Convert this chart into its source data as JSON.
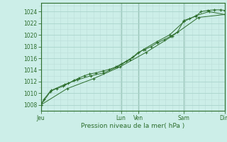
{
  "xlabel": "Pression niveau de la mer( hPa )",
  "bg_color": "#cceee8",
  "grid_major_color": "#aad4cc",
  "grid_minor_color": "#bbddd8",
  "line_color": "#2d6e2d",
  "marker_color": "#2d6e2d",
  "ylim": [
    1007.0,
    1025.5
  ],
  "yticks": [
    1008,
    1010,
    1012,
    1014,
    1016,
    1018,
    1020,
    1022,
    1024
  ],
  "x_day_labels": [
    "Jeu",
    "Lun",
    "Ven",
    "Sam",
    "Dim"
  ],
  "x_day_positions": [
    0.0,
    3.05,
    3.7,
    5.45,
    7.0
  ],
  "xlim": [
    0.0,
    7.0
  ],
  "series1": [
    [
      0.0,
      1008.0
    ],
    [
      0.12,
      1009.0
    ],
    [
      0.35,
      1010.3
    ],
    [
      0.6,
      1010.8
    ],
    [
      0.85,
      1011.2
    ],
    [
      1.05,
      1011.7
    ],
    [
      1.25,
      1012.2
    ],
    [
      1.45,
      1012.6
    ],
    [
      1.65,
      1013.0
    ],
    [
      1.85,
      1013.3
    ],
    [
      2.1,
      1013.5
    ],
    [
      2.35,
      1013.8
    ],
    [
      2.6,
      1014.1
    ],
    [
      2.85,
      1014.5
    ],
    [
      3.05,
      1015.0
    ],
    [
      3.25,
      1015.5
    ],
    [
      3.5,
      1016.2
    ],
    [
      3.7,
      1017.0
    ],
    [
      3.95,
      1017.5
    ],
    [
      4.2,
      1018.0
    ],
    [
      4.45,
      1018.7
    ],
    [
      4.7,
      1019.2
    ],
    [
      4.95,
      1019.8
    ],
    [
      5.2,
      1020.5
    ],
    [
      5.45,
      1022.5
    ],
    [
      5.65,
      1022.8
    ],
    [
      5.9,
      1023.2
    ],
    [
      6.1,
      1024.0
    ],
    [
      6.35,
      1024.2
    ],
    [
      6.6,
      1024.3
    ],
    [
      6.85,
      1024.3
    ],
    [
      7.0,
      1024.2
    ]
  ],
  "series2": [
    [
      0.0,
      1008.0
    ],
    [
      0.4,
      1010.5
    ],
    [
      0.9,
      1011.5
    ],
    [
      1.4,
      1012.3
    ],
    [
      1.9,
      1013.0
    ],
    [
      2.4,
      1013.5
    ],
    [
      2.9,
      1014.5
    ],
    [
      3.4,
      1015.8
    ],
    [
      3.9,
      1017.5
    ],
    [
      4.4,
      1018.8
    ],
    [
      4.9,
      1020.0
    ],
    [
      5.45,
      1022.3
    ],
    [
      5.9,
      1023.3
    ],
    [
      6.4,
      1024.0
    ],
    [
      7.0,
      1023.5
    ]
  ],
  "series3": [
    [
      0.0,
      1008.0
    ],
    [
      1.0,
      1010.8
    ],
    [
      2.0,
      1012.5
    ],
    [
      3.0,
      1014.5
    ],
    [
      4.0,
      1017.0
    ],
    [
      5.0,
      1019.8
    ],
    [
      6.0,
      1023.0
    ],
    [
      7.0,
      1023.5
    ]
  ]
}
